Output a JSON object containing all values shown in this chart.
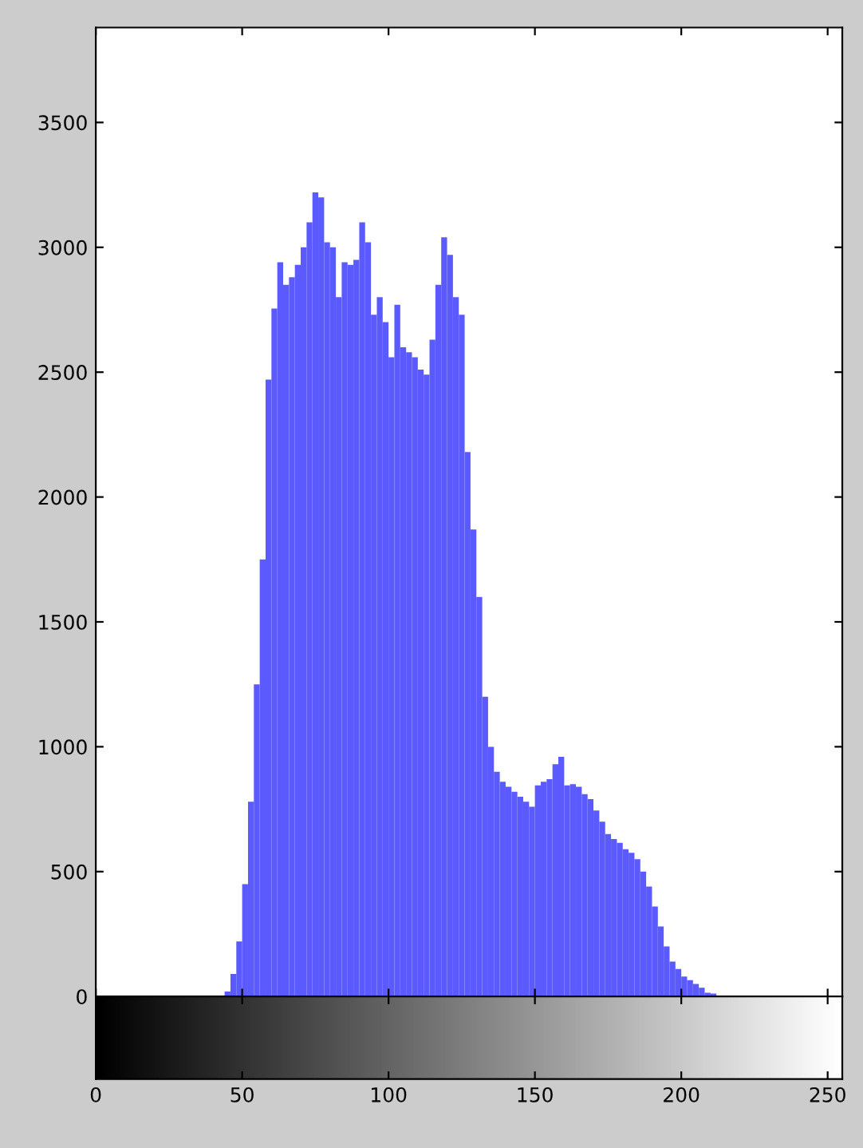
{
  "chart_data": {
    "type": "histogram",
    "bins": [
      44,
      46,
      48,
      50,
      52,
      54,
      56,
      58,
      60,
      62,
      64,
      66,
      68,
      70,
      72,
      74,
      76,
      78,
      80,
      82,
      84,
      86,
      88,
      90,
      92,
      94,
      96,
      98,
      100,
      102,
      104,
      106,
      108,
      110,
      112,
      114,
      116,
      118,
      120,
      122,
      124,
      126,
      128,
      130,
      132,
      134,
      136,
      138,
      140,
      142,
      144,
      146,
      148,
      150,
      152,
      154,
      156,
      158,
      160,
      162,
      164,
      166,
      168,
      170,
      172,
      174,
      176,
      178,
      180,
      182,
      184,
      186,
      188,
      190,
      192,
      194,
      196,
      198,
      200,
      202,
      204,
      206,
      208,
      210,
      212,
      214
    ],
    "values": [
      20,
      90,
      220,
      450,
      780,
      1250,
      1750,
      2470,
      2755,
      2940,
      2850,
      2880,
      2930,
      3000,
      3100,
      3220,
      3200,
      3020,
      3000,
      2800,
      2940,
      2930,
      2950,
      3100,
      3020,
      2730,
      2800,
      2700,
      2560,
      2770,
      2600,
      2580,
      2560,
      2510,
      2490,
      2630,
      2850,
      3040,
      2970,
      2800,
      2730,
      2180,
      1870,
      1600,
      1200,
      1000,
      900,
      860,
      840,
      820,
      800,
      780,
      760,
      845,
      860,
      870,
      930,
      960,
      845,
      850,
      840,
      810,
      790,
      745,
      700,
      650,
      630,
      615,
      590,
      575,
      550,
      500,
      440,
      360,
      280,
      200,
      140,
      110,
      80,
      65,
      50,
      35,
      15,
      12,
      3
    ],
    "color": "#5a5aff",
    "xlim": [
      0,
      255
    ],
    "xticks": [
      0,
      50,
      100,
      150,
      200,
      250
    ],
    "ylim": [
      0,
      3880
    ],
    "yticks": [
      0,
      500,
      1000,
      1500,
      2000,
      2500,
      3000,
      3500
    ],
    "grid": false
  }
}
